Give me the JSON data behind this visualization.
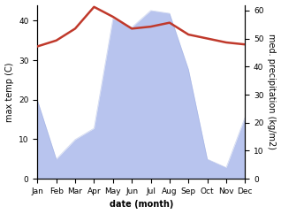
{
  "months": [
    "Jan",
    "Feb",
    "Mar",
    "Apr",
    "May",
    "Jun",
    "Jul",
    "Aug",
    "Sep",
    "Oct",
    "Nov",
    "Dec"
  ],
  "x": [
    0,
    1,
    2,
    3,
    4,
    5,
    6,
    7,
    8,
    9,
    10,
    11
  ],
  "temp": [
    33.5,
    35.0,
    38.0,
    43.5,
    41.0,
    38.0,
    38.5,
    39.5,
    36.5,
    35.5,
    34.5,
    34.0
  ],
  "precip": [
    28.0,
    7.0,
    14.0,
    18.0,
    57.0,
    54.0,
    60.0,
    59.0,
    39.0,
    7.0,
    4.0,
    22.0
  ],
  "temp_color": "#c0392b",
  "precip_color": "#b8c4ee",
  "precip_edge_color": "#99aadd",
  "ylabel_left": "max temp (C)",
  "ylabel_right": "med. precipitation (kg/m2)",
  "xlabel": "date (month)",
  "ylim_left": [
    0,
    44
  ],
  "ylim_right": [
    0,
    62
  ],
  "yticks_left": [
    0,
    10,
    20,
    30,
    40
  ],
  "yticks_right": [
    0,
    10,
    20,
    30,
    40,
    50,
    60
  ],
  "background_color": "#ffffff",
  "figsize": [
    3.18,
    2.42
  ],
  "dpi": 100
}
